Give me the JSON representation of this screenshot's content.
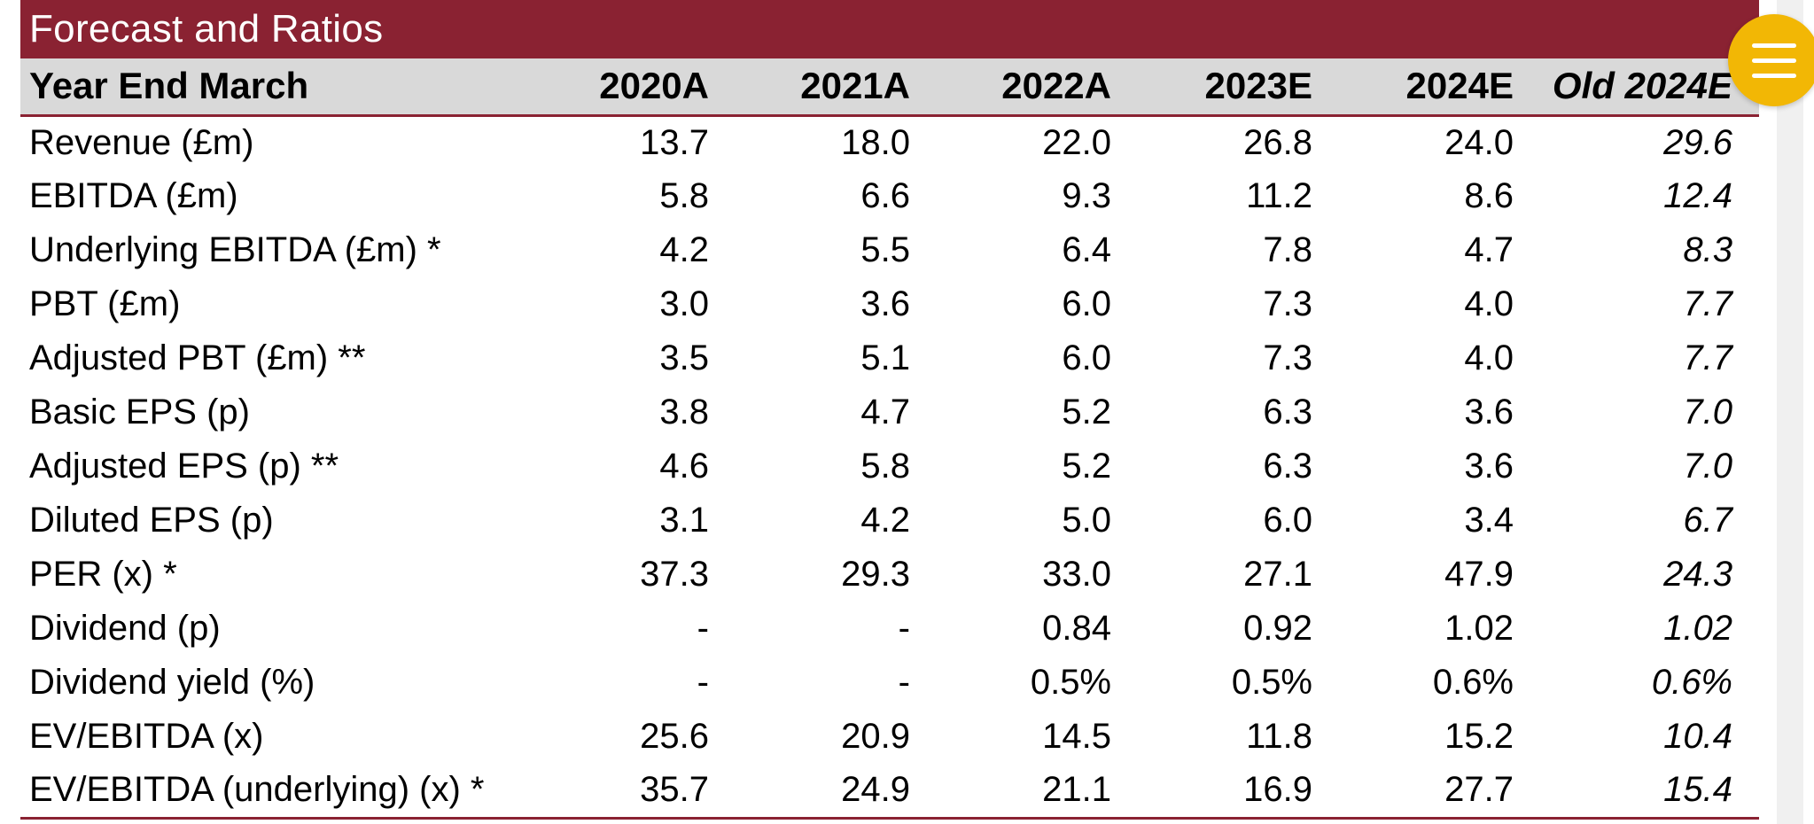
{
  "title": "Forecast and Ratios",
  "header": {
    "label": "Year End March",
    "columns": [
      "2020A",
      "2021A",
      "2022A",
      "2023E",
      "2024E",
      "Old 2024E"
    ]
  },
  "rows": [
    {
      "label": "Revenue (£m)",
      "values": [
        "13.7",
        "18.0",
        "22.0",
        "26.8",
        "24.0",
        "29.6"
      ]
    },
    {
      "label": "EBITDA (£m)",
      "values": [
        "5.8",
        "6.6",
        "9.3",
        "11.2",
        "8.6",
        "12.4"
      ]
    },
    {
      "label": "Underlying EBITDA (£m) *",
      "values": [
        "4.2",
        "5.5",
        "6.4",
        "7.8",
        "4.7",
        "8.3"
      ]
    },
    {
      "label": "PBT (£m)",
      "values": [
        "3.0",
        "3.6",
        "6.0",
        "7.3",
        "4.0",
        "7.7"
      ]
    },
    {
      "label": "Adjusted PBT (£m) **",
      "values": [
        "3.5",
        "5.1",
        "6.0",
        "7.3",
        "4.0",
        "7.7"
      ]
    },
    {
      "label": "Basic EPS (p)",
      "values": [
        "3.8",
        "4.7",
        "5.2",
        "6.3",
        "3.6",
        "7.0"
      ]
    },
    {
      "label": "Adjusted EPS (p) **",
      "values": [
        "4.6",
        "5.8",
        "5.2",
        "6.3",
        "3.6",
        "7.0"
      ]
    },
    {
      "label": "Diluted EPS (p)",
      "values": [
        "3.1",
        "4.2",
        "5.0",
        "6.0",
        "3.4",
        "6.7"
      ]
    },
    {
      "label": "PER (x) *",
      "values": [
        "37.3",
        "29.3",
        "33.0",
        "27.1",
        "47.9",
        "24.3"
      ]
    },
    {
      "label": "Dividend (p)",
      "values": [
        "-",
        "-",
        "0.84",
        "0.92",
        "1.02",
        "1.02"
      ]
    },
    {
      "label": "Dividend yield (%)",
      "values": [
        "-",
        "-",
        "0.5%",
        "0.5%",
        "0.6%",
        "0.6%"
      ]
    },
    {
      "label": "EV/EBITDA (x)",
      "values": [
        "25.6",
        "20.9",
        "14.5",
        "11.8",
        "15.2",
        "10.4"
      ]
    },
    {
      "label": "EV/EBITDA (underlying) (x) *",
      "values": [
        "35.7",
        "24.9",
        "21.1",
        "16.9",
        "27.7",
        "15.4"
      ]
    }
  ],
  "menu_button": {
    "icon": "hamburger-menu-icon",
    "color": "#f2b705"
  },
  "colors": {
    "accent": "#8a2232",
    "header_bg": "#d9d9d9"
  }
}
